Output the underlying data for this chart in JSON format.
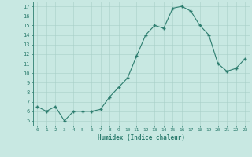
{
  "x": [
    0,
    1,
    2,
    3,
    4,
    5,
    6,
    7,
    8,
    9,
    10,
    11,
    12,
    13,
    14,
    15,
    16,
    17,
    18,
    19,
    20,
    21,
    22,
    23
  ],
  "y": [
    6.5,
    6.0,
    6.5,
    5.0,
    6.0,
    6.0,
    6.0,
    6.2,
    7.5,
    8.5,
    9.5,
    11.8,
    14.0,
    15.0,
    14.7,
    16.8,
    17.0,
    16.5,
    15.0,
    14.0,
    11.0,
    10.2,
    10.5,
    11.5
  ],
  "line_color": "#2d7d6f",
  "marker_color": "#2d7d6f",
  "bg_color": "#c8e8e2",
  "grid_color": "#a8cfc8",
  "xlabel": "Humidex (Indice chaleur)",
  "ylabel_ticks": [
    5,
    6,
    7,
    8,
    9,
    10,
    11,
    12,
    13,
    14,
    15,
    16,
    17
  ],
  "xlim": [
    -0.5,
    23.5
  ],
  "ylim": [
    4.5,
    17.5
  ],
  "tick_color": "#2d7d6f",
  "label_color": "#2d7d6f",
  "spine_color": "#2d7d6f"
}
